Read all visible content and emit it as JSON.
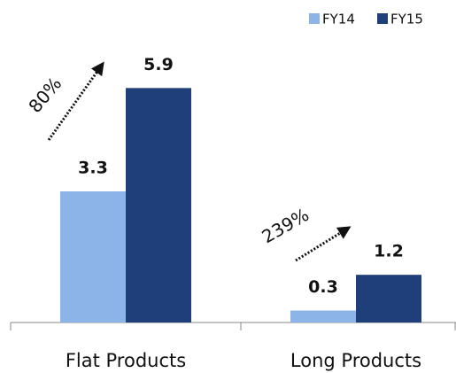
{
  "chart_data": {
    "type": "bar",
    "categories": [
      "Flat Products",
      "Long Products"
    ],
    "series": [
      {
        "name": "FY14",
        "color": "#8db4e8",
        "values": [
          3.3,
          0.3
        ]
      },
      {
        "name": "FY15",
        "color": "#1f3f7a",
        "values": [
          5.9,
          1.2
        ]
      }
    ],
    "ylim": [
      0,
      7
    ],
    "annotations": [
      "80%",
      "239%"
    ],
    "legend": "top-right"
  }
}
